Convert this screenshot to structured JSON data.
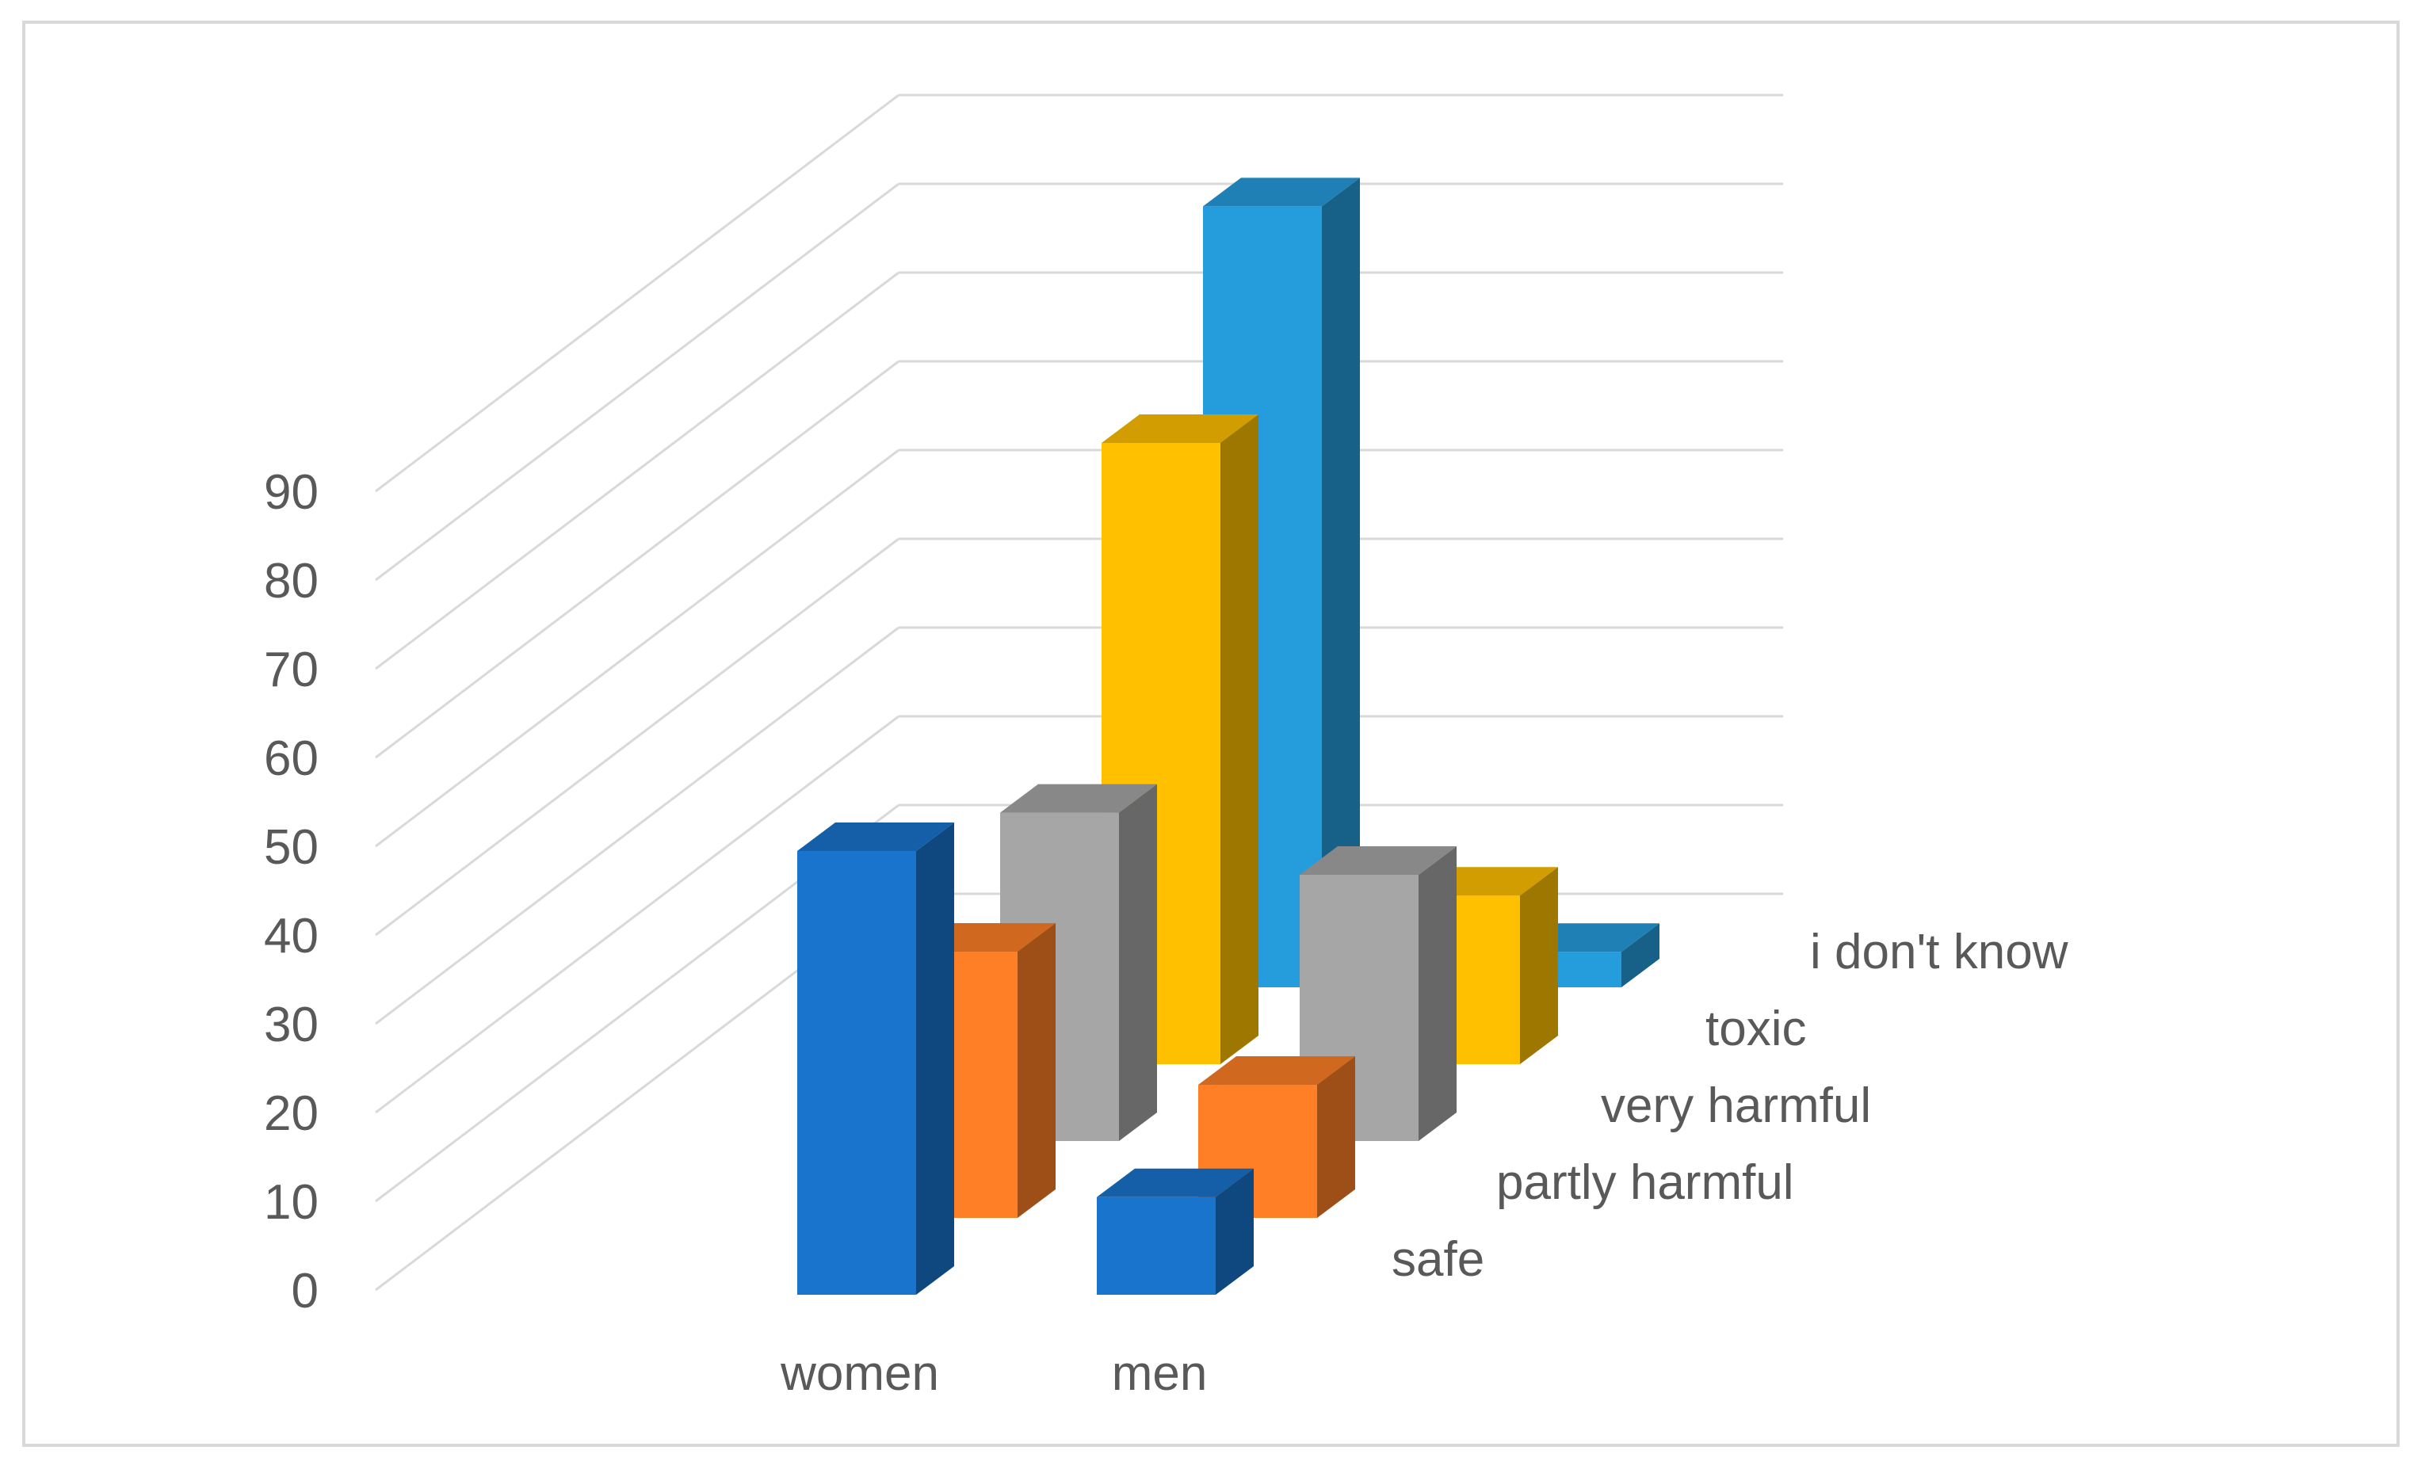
{
  "chart_data": {
    "type": "bar",
    "variant": "3d-column",
    "categories": [
      "women",
      "men"
    ],
    "series": [
      {
        "name": "safe",
        "values": [
          50,
          11
        ],
        "color": "#1874cd"
      },
      {
        "name": "partly harmful",
        "values": [
          30,
          15
        ],
        "color": "#ff7f27"
      },
      {
        "name": "very harmful",
        "values": [
          37,
          30
        ],
        "color": "#a6a6a6"
      },
      {
        "name": "toxic",
        "values": [
          70,
          19
        ],
        "color": "#ffc000"
      },
      {
        "name": "i don't know",
        "values": [
          88,
          4
        ],
        "color": "#259cdc"
      }
    ],
    "y_ticks": [
      "0",
      "10",
      "20",
      "30",
      "40",
      "50",
      "60",
      "70",
      "80",
      "90"
    ],
    "ylim": [
      0,
      90
    ],
    "grid": true,
    "legend": "series labels along depth axis (right)"
  }
}
